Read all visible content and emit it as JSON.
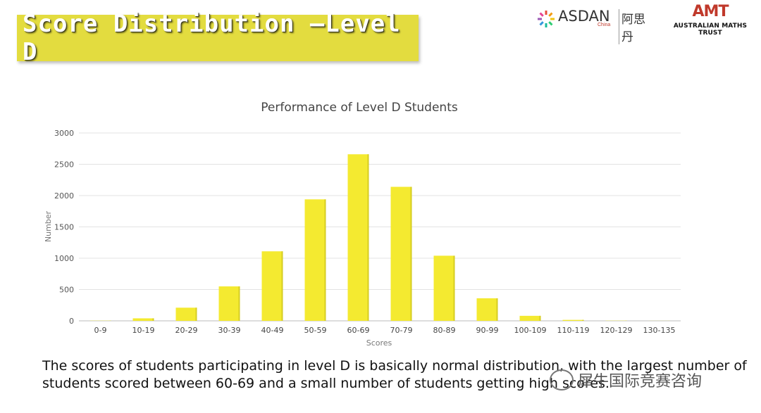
{
  "header": {
    "title": "Score Distribution —Level D",
    "logo_asdan_text": "ASDAN",
    "logo_asdan_sub": "China",
    "logo_asdan_cn": "阿思丹",
    "logo_amt_mark": "AMT",
    "logo_amt_name": "AUSTRALIAN MATHS TRUST"
  },
  "caption": {
    "line1": "The scores of students participating in level D is basically normal distribution, with the largest number of",
    "line2": "students scored between 60-69 and a small number of students getting high scores."
  },
  "watermark": "犀牛国际竞赛咨询",
  "colors": {
    "bar": "#f4ea30",
    "banner": "#e3dc3f",
    "grid": "#e3e3e3"
  },
  "chart_data": {
    "type": "bar",
    "title": "Performance of Level D Students",
    "xlabel": "Scores",
    "ylabel": "Number",
    "categories": [
      "0-9",
      "10-19",
      "20-29",
      "30-39",
      "40-49",
      "50-59",
      "60-69",
      "70-79",
      "80-89",
      "90-99",
      "100-109",
      "110-119",
      "120-129",
      "130-135"
    ],
    "values": [
      3,
      40,
      210,
      550,
      1110,
      1940,
      2660,
      2140,
      1040,
      360,
      80,
      15,
      3,
      1
    ],
    "ylim": [
      0,
      3000
    ],
    "yticks": [
      0,
      500,
      1000,
      1500,
      2000,
      2500,
      3000
    ],
    "grid": true,
    "legend": "none"
  }
}
